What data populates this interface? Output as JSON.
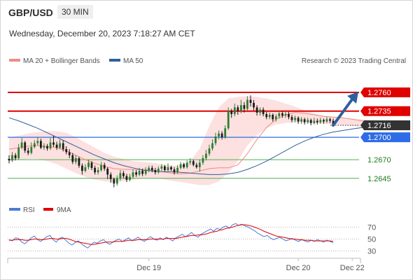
{
  "header": {
    "symbol": "GBP/USD",
    "timeframe": "30 MIN",
    "datetime": "Wednesday, December 20, 2023 7:18:27 AM CET"
  },
  "legend": {
    "ma20": "MA 20 + Bollinger Bands",
    "ma50": "MA 50",
    "copyright": "Research © 2023 Trading Central",
    "rsi": "RSI",
    "ma9": "9MA"
  },
  "colors": {
    "ma20": "#f28b82",
    "ma50": "#2f5f9e",
    "bollinger_fill": "#fde0e0",
    "resistance": "#e00000",
    "pivot": "#2e6be6",
    "support": "#4caf50",
    "current": "#333333",
    "candle_up": "#2e7d32",
    "candle_down": "#1b1b1b",
    "arrow": "#2f5f9e",
    "rsi": "#4a7bd8",
    "rsi_ma": "#e00000"
  },
  "chart_data": [
    {
      "type": "candlestick",
      "y_scale": {
        "min": 1.2612,
        "max": 1.279
      },
      "x_labels": [
        {
          "label": "Dec 19",
          "index": 44
        },
        {
          "label": "Dec 20",
          "index": 91
        },
        {
          "label": "Dec 22",
          "index": 108
        }
      ],
      "levels": [
        {
          "value": 1.276,
          "label": "1.2760",
          "kind": "resistance"
        },
        {
          "value": 1.2735,
          "label": "1.2735",
          "kind": "resistance"
        },
        {
          "value": 1.2716,
          "label": "1.2716",
          "kind": "current"
        },
        {
          "value": 1.27,
          "label": "1.2700",
          "kind": "pivot"
        },
        {
          "value": 1.267,
          "label": "1.2670",
          "kind": "support"
        },
        {
          "value": 1.2645,
          "label": "1.2645",
          "kind": "support"
        }
      ],
      "candles": [
        [
          1.2671,
          1.2669,
          1.2676,
          1.2665
        ],
        [
          1.2669,
          1.2676,
          1.268,
          1.2667
        ],
        [
          1.2676,
          1.2672,
          1.2679,
          1.2669
        ],
        [
          1.2672,
          1.2686,
          1.2691,
          1.267
        ],
        [
          1.2686,
          1.2693,
          1.2699,
          1.2684
        ],
        [
          1.2693,
          1.2682,
          1.2695,
          1.2679
        ],
        [
          1.2682,
          1.2679,
          1.2686,
          1.2676
        ],
        [
          1.2679,
          1.2687,
          1.2693,
          1.2677
        ],
        [
          1.2687,
          1.2692,
          1.2696,
          1.2685
        ],
        [
          1.2692,
          1.2695,
          1.27,
          1.2689
        ],
        [
          1.2695,
          1.2686,
          1.2698,
          1.2684
        ],
        [
          1.2686,
          1.2688,
          1.2692,
          1.2683
        ],
        [
          1.2688,
          1.2685,
          1.2691,
          1.2682
        ],
        [
          1.2685,
          1.2693,
          1.2699,
          1.2683
        ],
        [
          1.2693,
          1.269,
          1.2702,
          1.2687
        ],
        [
          1.269,
          1.2686,
          1.2694,
          1.2683
        ],
        [
          1.2686,
          1.2692,
          1.2697,
          1.2684
        ],
        [
          1.2692,
          1.2684,
          1.2696,
          1.2681
        ],
        [
          1.2684,
          1.268,
          1.2688,
          1.2677
        ],
        [
          1.268,
          1.2676,
          1.2684,
          1.2672
        ],
        [
          1.2676,
          1.2667,
          1.2679,
          1.2664
        ],
        [
          1.2667,
          1.2672,
          1.2676,
          1.2664
        ],
        [
          1.2672,
          1.2662,
          1.2674,
          1.2659
        ],
        [
          1.2662,
          1.2655,
          1.2665,
          1.265
        ],
        [
          1.2655,
          1.266,
          1.2664,
          1.2653
        ],
        [
          1.266,
          1.2666,
          1.267,
          1.2657
        ],
        [
          1.2666,
          1.2659,
          1.2668,
          1.2656
        ],
        [
          1.2659,
          1.2653,
          1.2662,
          1.265
        ],
        [
          1.2653,
          1.2656,
          1.266,
          1.265
        ],
        [
          1.2656,
          1.2663,
          1.2667,
          1.2654
        ],
        [
          1.2663,
          1.2658,
          1.2666,
          1.2655
        ],
        [
          1.2658,
          1.265,
          1.266,
          1.2644
        ],
        [
          1.265,
          1.2644,
          1.2653,
          1.2639
        ],
        [
          1.2644,
          1.2638,
          1.2646,
          1.2633
        ],
        [
          1.2638,
          1.2645,
          1.2649,
          1.2635
        ],
        [
          1.2645,
          1.2652,
          1.2656,
          1.2642
        ],
        [
          1.2652,
          1.2648,
          1.2655,
          1.2645
        ],
        [
          1.2648,
          1.2643,
          1.2651,
          1.264
        ],
        [
          1.2643,
          1.2647,
          1.2651,
          1.2641
        ],
        [
          1.2647,
          1.2653,
          1.2657,
          1.2645
        ],
        [
          1.2653,
          1.265,
          1.2656,
          1.2647
        ],
        [
          1.265,
          1.2655,
          1.2659,
          1.2648
        ],
        [
          1.2655,
          1.2651,
          1.2658,
          1.2648
        ],
        [
          1.2651,
          1.2656,
          1.266,
          1.2649
        ],
        [
          1.2656,
          1.2659,
          1.2662,
          1.2653
        ],
        [
          1.2659,
          1.2656,
          1.2662,
          1.2653
        ],
        [
          1.2656,
          1.2653,
          1.2659,
          1.265
        ],
        [
          1.2653,
          1.2658,
          1.2661,
          1.2651
        ],
        [
          1.2658,
          1.2661,
          1.2664,
          1.2655
        ],
        [
          1.2661,
          1.2656,
          1.2663,
          1.2654
        ],
        [
          1.2656,
          1.266,
          1.2665,
          1.2654
        ],
        [
          1.266,
          1.2657,
          1.2662,
          1.2655
        ],
        [
          1.2657,
          1.2653,
          1.266,
          1.265
        ],
        [
          1.2653,
          1.2659,
          1.2663,
          1.2651
        ],
        [
          1.2659,
          1.2664,
          1.2667,
          1.2657
        ],
        [
          1.2664,
          1.266,
          1.2666,
          1.2658
        ],
        [
          1.266,
          1.2666,
          1.2669,
          1.2658
        ],
        [
          1.2666,
          1.2668,
          1.2672,
          1.2663
        ],
        [
          1.2668,
          1.2663,
          1.267,
          1.2661
        ],
        [
          1.2663,
          1.266,
          1.2666,
          1.2658
        ],
        [
          1.266,
          1.2666,
          1.267,
          1.2654
        ],
        [
          1.2666,
          1.2672,
          1.2676,
          1.2663
        ],
        [
          1.2672,
          1.2678,
          1.2683,
          1.2669
        ],
        [
          1.2678,
          1.2685,
          1.269,
          1.2675
        ],
        [
          1.2685,
          1.2692,
          1.2697,
          1.2682
        ],
        [
          1.2692,
          1.2701,
          1.2706,
          1.2689
        ],
        [
          1.2701,
          1.2705,
          1.2709,
          1.2697
        ],
        [
          1.2705,
          1.27,
          1.2708,
          1.2697
        ],
        [
          1.27,
          1.2712,
          1.2716,
          1.2698
        ],
        [
          1.2712,
          1.2735,
          1.274,
          1.271
        ],
        [
          1.2735,
          1.2731,
          1.2738,
          1.2726
        ],
        [
          1.2731,
          1.274,
          1.2745,
          1.2728
        ],
        [
          1.274,
          1.2735,
          1.2743,
          1.273
        ],
        [
          1.2735,
          1.2743,
          1.275,
          1.2732
        ],
        [
          1.2743,
          1.2738,
          1.2747,
          1.2733
        ],
        [
          1.2738,
          1.275,
          1.2755,
          1.2736
        ],
        [
          1.275,
          1.2746,
          1.2756,
          1.2741
        ],
        [
          1.2746,
          1.274,
          1.275,
          1.2736
        ],
        [
          1.274,
          1.2733,
          1.2743,
          1.2729
        ],
        [
          1.2733,
          1.2737,
          1.274,
          1.2729
        ],
        [
          1.2737,
          1.2731,
          1.274,
          1.2728
        ],
        [
          1.2731,
          1.2727,
          1.2734,
          1.2724
        ],
        [
          1.2727,
          1.273,
          1.2733,
          1.2724
        ],
        [
          1.273,
          1.2724,
          1.2732,
          1.2721
        ],
        [
          1.2724,
          1.2728,
          1.2731,
          1.2721
        ],
        [
          1.2728,
          1.2732,
          1.2735,
          1.2725
        ],
        [
          1.2732,
          1.2729,
          1.2735,
          1.2726
        ],
        [
          1.2729,
          1.2731,
          1.2734,
          1.2726
        ],
        [
          1.2731,
          1.2727,
          1.2734,
          1.2724
        ],
        [
          1.2727,
          1.2723,
          1.273,
          1.272
        ],
        [
          1.2723,
          1.2726,
          1.2729,
          1.272
        ],
        [
          1.2726,
          1.2721,
          1.2728,
          1.2718
        ],
        [
          1.2721,
          1.2724,
          1.2727,
          1.2718
        ],
        [
          1.2724,
          1.272,
          1.2726,
          1.2717
        ],
        [
          1.272,
          1.2723,
          1.2726,
          1.2718
        ],
        [
          1.2723,
          1.2719,
          1.2725,
          1.2716
        ],
        [
          1.2719,
          1.2722,
          1.2726,
          1.2717
        ],
        [
          1.2722,
          1.272,
          1.2725,
          1.2717
        ],
        [
          1.272,
          1.2723,
          1.2726,
          1.2718
        ],
        [
          1.2723,
          1.2721,
          1.2725,
          1.2718
        ],
        [
          1.2721,
          1.2724,
          1.2727,
          1.2719
        ],
        [
          1.2724,
          1.2722,
          1.2726,
          1.2719
        ],
        [
          1.2722,
          1.2716,
          1.2725,
          1.2715
        ]
      ],
      "ma20": [
        1.2684,
        1.2686,
        1.2688,
        1.2689,
        1.2688,
        1.2686,
        1.2682,
        1.2676,
        1.267,
        1.2665,
        1.2661,
        1.2658,
        1.2657,
        1.2657,
        1.2657,
        1.2656,
        1.2654,
        1.2652,
        1.2651,
        1.2652,
        1.2655,
        1.2658,
        1.2659,
        1.2659,
        1.2663,
        1.2678,
        1.2697,
        1.2713,
        1.2724,
        1.273,
        1.2733,
        1.2732,
        1.273,
        1.2728,
        1.2727,
        1.2726,
        1.2724,
        1.2722,
        1.272,
        1.2719
      ],
      "ma20_index": [
        0,
        3,
        6,
        9,
        12,
        15,
        18,
        21,
        24,
        27,
        30,
        33,
        36,
        39,
        42,
        45,
        48,
        51,
        54,
        57,
        60,
        63,
        66,
        69,
        72,
        75,
        78,
        81,
        84,
        87,
        90,
        93,
        96,
        99,
        102,
        105,
        108,
        111,
        114,
        117
      ],
      "bb_upper": [
        1.27,
        1.2702,
        1.2705,
        1.2707,
        1.2708,
        1.2708,
        1.2706,
        1.27,
        1.2693,
        1.2686,
        1.2679,
        1.2674,
        1.2671,
        1.2668,
        1.2667,
        1.2666,
        1.2664,
        1.2662,
        1.2662,
        1.2668,
        1.2685,
        1.2715,
        1.274,
        1.2752,
        1.2754,
        1.2755,
        1.2754,
        1.2752,
        1.2749,
        1.2745,
        1.2741,
        1.2736,
        1.2732,
        1.2729,
        1.2727,
        1.2726,
        1.2725,
        1.2724,
        1.2723,
        1.2722
      ],
      "bb_lower": [
        1.2668,
        1.267,
        1.2671,
        1.2671,
        1.2668,
        1.2664,
        1.2658,
        1.2652,
        1.2647,
        1.2643,
        1.2641,
        1.264,
        1.2641,
        1.2643,
        1.2645,
        1.2645,
        1.2644,
        1.2642,
        1.264,
        1.2638,
        1.2636,
        1.2636,
        1.2641,
        1.2652,
        1.2668,
        1.2689,
        1.2703,
        1.2712,
        1.2717,
        1.2719,
        1.272,
        1.272,
        1.2719,
        1.2718,
        1.2717,
        1.2716,
        1.2715,
        1.2714,
        1.2713,
        1.2712
      ],
      "ma50": [
        1.2726,
        1.2722,
        1.2717,
        1.2712,
        1.2706,
        1.27,
        1.2694,
        1.2688,
        1.2682,
        1.2676,
        1.2671,
        1.2666,
        1.2662,
        1.2659,
        1.2656,
        1.2655,
        1.2654,
        1.2654,
        1.2653,
        1.2652,
        1.2651,
        1.265,
        1.265,
        1.2651,
        1.2653,
        1.2657,
        1.2662,
        1.2668,
        1.2675,
        1.2682,
        1.2689,
        1.2695,
        1.27,
        1.2704,
        1.2707,
        1.2709,
        1.2711,
        1.2713,
        1.2714,
        1.2715
      ],
      "forecast_arrow": {
        "from": 1.2716,
        "to": 1.276
      }
    },
    {
      "type": "line",
      "y_range": [
        20,
        80
      ],
      "ticks": [
        70,
        50,
        30
      ],
      "series": [
        {
          "name": "RSI",
          "values": [
            49,
            47,
            52,
            51,
            45,
            42,
            47,
            52,
            55,
            49,
            46,
            50,
            54,
            56,
            49,
            45,
            51,
            53,
            48,
            43,
            40,
            44,
            47,
            42,
            38,
            35,
            40,
            45,
            43,
            47,
            49,
            44,
            41,
            45,
            48,
            50,
            46,
            49,
            52,
            47,
            50,
            53,
            49,
            46,
            51,
            54,
            50,
            48,
            52,
            49,
            53,
            50,
            47,
            52,
            55,
            58,
            54,
            57,
            61,
            56,
            53,
            58,
            61,
            64,
            67,
            63,
            68,
            66,
            70,
            72,
            68,
            74,
            76,
            73,
            75,
            72,
            70,
            67,
            64,
            60,
            57,
            54,
            56,
            52,
            49,
            51,
            53,
            50,
            47,
            49,
            51,
            48,
            46,
            49,
            47,
            45,
            48,
            46,
            49,
            47,
            45,
            48,
            46,
            44
          ]
        },
        {
          "name": "9MA",
          "values": [
            48,
            48,
            49,
            49,
            49,
            48,
            48,
            49,
            50,
            50,
            49,
            49,
            50,
            51,
            51,
            50,
            50,
            51,
            51,
            50,
            48,
            46,
            45,
            44,
            43,
            42,
            41,
            41,
            42,
            43,
            44,
            45,
            45,
            45,
            46,
            46,
            46,
            47,
            48,
            48,
            48,
            49,
            49,
            49,
            49,
            50,
            50,
            50,
            50,
            50,
            51,
            51,
            51,
            51,
            52,
            53,
            54,
            55,
            56,
            56,
            57,
            57,
            58,
            59,
            61,
            62,
            63,
            65,
            66,
            68,
            69,
            70,
            72,
            73,
            74,
            74,
            73,
            72,
            70,
            68,
            66,
            63,
            61,
            59,
            57,
            55,
            54,
            53,
            52,
            51,
            50,
            50,
            49,
            49,
            48,
            48,
            48,
            47,
            47,
            47,
            47,
            47,
            47,
            46
          ]
        }
      ]
    }
  ]
}
